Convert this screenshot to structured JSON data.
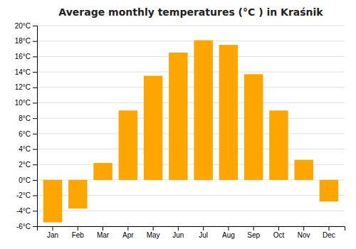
{
  "chart_data": {
    "type": "bar",
    "title": "Average monthly temperatures (°C ) in Kraśnik",
    "categories": [
      "Jan",
      "Feb",
      "Mar",
      "Apr",
      "May",
      "Jun",
      "Jul",
      "Aug",
      "Sep",
      "Oct",
      "Nov",
      "Dec"
    ],
    "values": [
      -5.5,
      -3.7,
      2.2,
      9.0,
      13.5,
      16.5,
      18.1,
      17.5,
      13.7,
      9.0,
      2.6,
      -2.8
    ],
    "color": "#FFA500",
    "ylim": [
      -6,
      20
    ],
    "yticks": [
      {
        "value": -6,
        "label": "-6°C"
      },
      {
        "value": -4,
        "label": "-4°C"
      },
      {
        "value": -2,
        "label": "-2°C"
      },
      {
        "value": 0,
        "label": "0°C"
      },
      {
        "value": 2,
        "label": "2°C"
      },
      {
        "value": 4,
        "label": "4°C"
      },
      {
        "value": 6,
        "label": "6°C"
      },
      {
        "value": 8,
        "label": "8°C"
      },
      {
        "value": 10,
        "label": "10°C"
      },
      {
        "value": 12,
        "label": "12°C"
      },
      {
        "value": 14,
        "label": "14°C"
      },
      {
        "value": 16,
        "label": "16°C"
      },
      {
        "value": 18,
        "label": "18°C"
      },
      {
        "value": 20,
        "label": "20°C"
      }
    ],
    "grid": true
  }
}
